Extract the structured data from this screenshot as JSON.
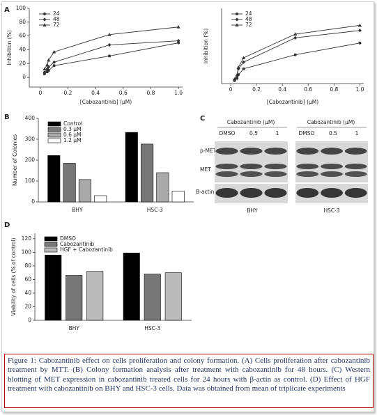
{
  "chart_data": [
    {
      "type": "line",
      "panel": "A",
      "xlabel": "[Cabozantinib] (µM)",
      "ylabel": "Inhibition (%)",
      "x": [
        0.03,
        0.05,
        0.06,
        0.1,
        0.5,
        1.0
      ],
      "series": [
        {
          "name": "24",
          "color": "#333333",
          "marker": "circle",
          "values": [
            5,
            8,
            10,
            17,
            31,
            50
          ]
        },
        {
          "name": "48",
          "color": "#333333",
          "marker": "diamond",
          "values": [
            7,
            12,
            15,
            22,
            47,
            53
          ]
        },
        {
          "name": "72",
          "color": "#333333",
          "marker": "triangle",
          "values": [
            12,
            18,
            25,
            37,
            62,
            73
          ]
        }
      ],
      "xlim": [
        -0.08,
        1.03
      ],
      "ylim": [
        -14,
        100
      ],
      "xticks": [
        0,
        0.2,
        0.4,
        0.6,
        0.8,
        {
          "value": 1,
          "label": "1.0"
        }
      ],
      "yticks": [
        0,
        20,
        40,
        60,
        80,
        100
      ],
      "legend": "upper left"
    },
    {
      "type": "line",
      "xlabel": "[Cabozantinib] (µM)",
      "ylabel": "Inhibition (%)",
      "x": [
        0.03,
        0.05,
        0.06,
        0.1,
        0.5,
        1.0
      ],
      "series": [
        {
          "name": "24",
          "color": "#333333",
          "marker": "circle",
          "values": [
            2,
            5,
            10,
            18,
            37,
            53
          ]
        },
        {
          "name": "48",
          "color": "#333333",
          "marker": "diamond",
          "values": [
            3,
            8,
            18,
            27,
            60,
            70
          ]
        },
        {
          "name": "72",
          "color": "#333333",
          "marker": "triangle",
          "values": [
            4,
            10,
            20,
            33,
            65,
            77
          ]
        }
      ],
      "xlim": [
        -0.07,
        1.03
      ],
      "ylim": [
        -2,
        100
      ],
      "xticks": [
        0,
        0.2,
        0.4,
        0.6,
        0.8,
        {
          "value": 1,
          "label": "1.0"
        }
      ],
      "legend": "upper left"
    },
    {
      "type": "bar",
      "panel": "B",
      "ylabel": "Number of Colonies",
      "categories": [
        "BHY",
        "HSC-3"
      ],
      "series": [
        {
          "name": "Control",
          "color": "#000000",
          "values": [
            222,
            333
          ]
        },
        {
          "name": "0.3 µM",
          "color": "#777777",
          "values": [
            185,
            277
          ]
        },
        {
          "name": "0.6 µM",
          "color": "#aaaaaa",
          "values": [
            107,
            140
          ]
        },
        {
          "name": "1.2 µM",
          "color": "#ffffff",
          "values": [
            30,
            52
          ]
        }
      ],
      "ylim": [
        0,
        400
      ],
      "yticks": [
        0,
        100,
        200,
        300,
        400
      ],
      "legend": "upper left"
    },
    {
      "type": "bar",
      "panel": "D",
      "ylabel": "Viability of cells (% of control)",
      "categories": [
        "BHY",
        "HSC-3"
      ],
      "series": [
        {
          "name": "DMSO",
          "color": "#000000",
          "values": [
            96,
            99
          ]
        },
        {
          "name": "Cabozantinib",
          "color": "#777777",
          "values": [
            66,
            68
          ]
        },
        {
          "name": "HGF + Cabozantinib",
          "color": "#bbbbbb",
          "values": [
            72,
            70
          ]
        }
      ],
      "ylim": [
        0,
        128
      ],
      "yticks": [
        0,
        20,
        40,
        60,
        80,
        100,
        120
      ],
      "legend": "upper left"
    }
  ],
  "blot": {
    "panel": "C",
    "proteins": [
      "p-MET",
      "MET",
      "B-actin"
    ],
    "groups": [
      {
        "name": "BHY",
        "header": "Cabozantinib (µM)",
        "lanes": [
          "DMSO",
          "0.5",
          "1"
        ]
      },
      {
        "name": "HSC-3",
        "header": "Cabozantinib (µM)",
        "lanes": [
          "DMSO",
          "0.5",
          "1"
        ]
      }
    ]
  },
  "caption": "Figure 1: Cabozantinib effect on cells proliferation and colony formation. (A) Cells proliferation after cabozantinib treatment by MTT. (B) Colony formation analysis after treatment with cabozantinib for 48 hours. (C) Western blotting of MET expression in cabozantinib treated cells for 24 hours with β-actin as control. (D) Effect of HGF treatment with cabozantinib on BHY and HSC-3 cells. Data was obtained from mean of triplicate experiments"
}
